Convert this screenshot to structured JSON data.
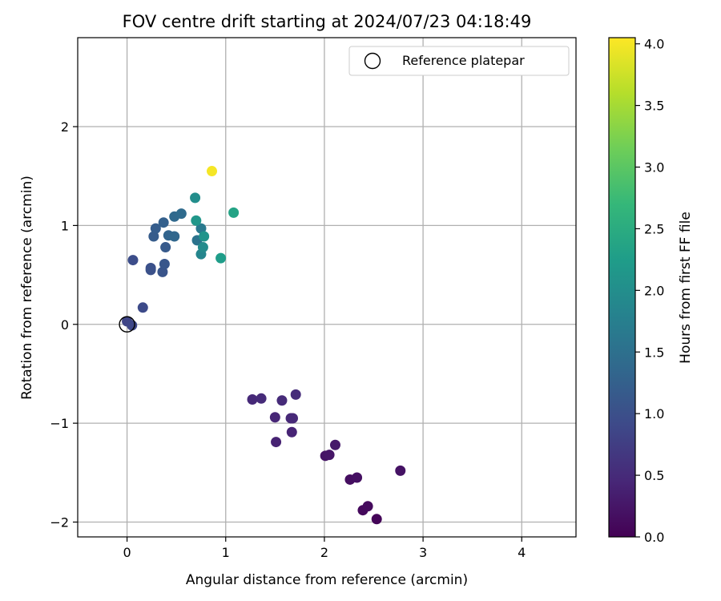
{
  "chart_data": {
    "type": "scatter",
    "title": "FOV centre drift starting at 2024/07/23 04:18:49",
    "xlabel": "Angular distance from reference (arcmin)",
    "ylabel": "Rotation from reference (arcmin)",
    "xlim": [
      -0.5,
      4.55
    ],
    "ylim": [
      -2.15,
      2.9
    ],
    "xticks": [
      "0",
      "1",
      "2",
      "3",
      "4"
    ],
    "xtick_values": [
      0,
      1,
      2,
      3,
      4
    ],
    "yticks": [
      "−2",
      "−1",
      "0",
      "1",
      "2"
    ],
    "ytick_values": [
      -2,
      -1,
      0,
      1,
      2
    ],
    "grid": true,
    "legend": {
      "position": "top-right",
      "label": "Reference platepar"
    },
    "reference_point": {
      "x": 0,
      "y": 0
    },
    "colorbar": {
      "label": "Hours from first FF file",
      "range": [
        0,
        4.05
      ],
      "ticks": [
        "0.0",
        "0.5",
        "1.0",
        "1.5",
        "2.0",
        "2.5",
        "3.0",
        "3.5",
        "4.0"
      ],
      "tick_values": [
        0,
        0.5,
        1,
        1.5,
        2,
        2.5,
        3,
        3.5,
        4
      ],
      "colormap": "viridis"
    },
    "points": [
      {
        "x": 2.53,
        "y": -1.97,
        "t": 0.05
      },
      {
        "x": 2.39,
        "y": -1.88,
        "t": 0.1
      },
      {
        "x": 2.44,
        "y": -1.84,
        "t": 0.12
      },
      {
        "x": 2.26,
        "y": -1.57,
        "t": 0.15
      },
      {
        "x": 2.33,
        "y": -1.55,
        "t": 0.18
      },
      {
        "x": 2.77,
        "y": -1.48,
        "t": 0.2
      },
      {
        "x": 2.01,
        "y": -1.33,
        "t": 0.22
      },
      {
        "x": 2.05,
        "y": -1.32,
        "t": 0.25
      },
      {
        "x": 2.11,
        "y": -1.22,
        "t": 0.28
      },
      {
        "x": 1.51,
        "y": -1.19,
        "t": 0.4
      },
      {
        "x": 1.67,
        "y": -1.09,
        "t": 0.42
      },
      {
        "x": 1.5,
        "y": -0.94,
        "t": 0.44
      },
      {
        "x": 1.66,
        "y": -0.95,
        "t": 0.46
      },
      {
        "x": 1.68,
        "y": -0.95,
        "t": 0.47
      },
      {
        "x": 1.27,
        "y": -0.76,
        "t": 0.48
      },
      {
        "x": 1.36,
        "y": -0.75,
        "t": 0.5
      },
      {
        "x": 1.57,
        "y": -0.77,
        "t": 0.5
      },
      {
        "x": 1.71,
        "y": -0.71,
        "t": 0.52
      },
      {
        "x": 0.0,
        "y": 0.03,
        "t": 0.85
      },
      {
        "x": 0.05,
        "y": -0.01,
        "t": 0.88
      },
      {
        "x": 0.16,
        "y": 0.17,
        "t": 0.92
      },
      {
        "x": 0.06,
        "y": 0.65,
        "t": 0.96
      },
      {
        "x": 0.24,
        "y": 0.57,
        "t": 1.0
      },
      {
        "x": 0.24,
        "y": 0.55,
        "t": 1.02
      },
      {
        "x": 0.36,
        "y": 0.53,
        "t": 1.06
      },
      {
        "x": 0.38,
        "y": 0.61,
        "t": 1.1
      },
      {
        "x": 0.39,
        "y": 0.78,
        "t": 1.15
      },
      {
        "x": 0.27,
        "y": 0.89,
        "t": 1.18
      },
      {
        "x": 0.29,
        "y": 0.97,
        "t": 1.2
      },
      {
        "x": 0.37,
        "y": 1.03,
        "t": 1.25
      },
      {
        "x": 0.42,
        "y": 0.9,
        "t": 1.3
      },
      {
        "x": 0.48,
        "y": 0.89,
        "t": 1.35
      },
      {
        "x": 0.48,
        "y": 1.09,
        "t": 1.38
      },
      {
        "x": 0.55,
        "y": 1.12,
        "t": 1.42
      },
      {
        "x": 0.71,
        "y": 0.85,
        "t": 1.55
      },
      {
        "x": 0.75,
        "y": 0.97,
        "t": 1.65
      },
      {
        "x": 0.75,
        "y": 0.71,
        "t": 1.85
      },
      {
        "x": 0.77,
        "y": 0.78,
        "t": 1.95
      },
      {
        "x": 0.78,
        "y": 0.89,
        "t": 2.1
      },
      {
        "x": 0.7,
        "y": 1.05,
        "t": 2.15
      },
      {
        "x": 0.69,
        "y": 1.28,
        "t": 2.0
      },
      {
        "x": 0.95,
        "y": 0.67,
        "t": 2.25
      },
      {
        "x": 1.08,
        "y": 1.13,
        "t": 2.35
      },
      {
        "x": 0.86,
        "y": 1.55,
        "t": 4.0
      }
    ]
  }
}
